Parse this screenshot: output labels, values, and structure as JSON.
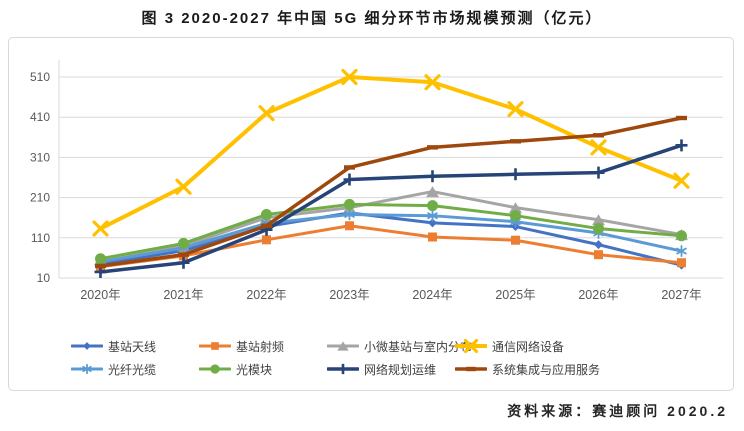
{
  "title": "图 3 2020-2027 年中国 5G 细分环节市场规模预测（亿元）",
  "source_note": "资料来源：赛迪顾问  2020.2",
  "colors": {
    "grid": "#d9d9d9",
    "axis_text": "#595959",
    "panel_border": "#d9d9d9",
    "title_text": "#1a1a1a",
    "legend_text": "#404040",
    "source_text": "#262626"
  },
  "chart_data": {
    "type": "line",
    "title": "图 3 2020-2027 年中国 5G 细分环节市场规模预测（亿元）",
    "unit": "亿元",
    "xlabel": "",
    "ylabel": "",
    "ylim": [
      10,
      510
    ],
    "yticks": [
      10,
      110,
      210,
      310,
      410,
      510
    ],
    "grid": true,
    "legend_position": "bottom",
    "categories": [
      "2020年",
      "2021年",
      "2022年",
      "2023年",
      "2024年",
      "2025年",
      "2026年",
      "2027年"
    ],
    "series": [
      {
        "name": "基站天线",
        "color": "#4472C4",
        "marker": "diamond",
        "values": [
          45,
          78,
          138,
          172,
          147,
          138,
          93,
          42
        ]
      },
      {
        "name": "基站射频",
        "color": "#ED7D31",
        "marker": "square",
        "values": [
          38,
          65,
          105,
          140,
          112,
          104,
          68,
          48
        ]
      },
      {
        "name": "小微基站与室内分布",
        "color": "#A5A5A5",
        "marker": "triangle",
        "values": [
          55,
          90,
          160,
          185,
          225,
          185,
          155,
          118
        ]
      },
      {
        "name": "通信网络设备",
        "color": "#FFC000",
        "marker": "x",
        "values": [
          133,
          237,
          420,
          510,
          497,
          430,
          335,
          252
        ]
      },
      {
        "name": "光纤光缆",
        "color": "#5B9BD5",
        "marker": "asterisk",
        "values": [
          50,
          85,
          146,
          168,
          165,
          150,
          122,
          77
        ]
      },
      {
        "name": "光模块",
        "color": "#70AD47",
        "marker": "circle",
        "values": [
          58,
          96,
          168,
          193,
          190,
          165,
          133,
          115
        ]
      },
      {
        "name": "网络规划运维",
        "color": "#264478",
        "marker": "plus",
        "values": [
          25,
          48,
          130,
          255,
          263,
          268,
          272,
          340
        ]
      },
      {
        "name": "系统集成与应用服务",
        "color": "#9E480E",
        "marker": "dash",
        "values": [
          40,
          68,
          140,
          285,
          335,
          350,
          365,
          408
        ]
      }
    ]
  }
}
